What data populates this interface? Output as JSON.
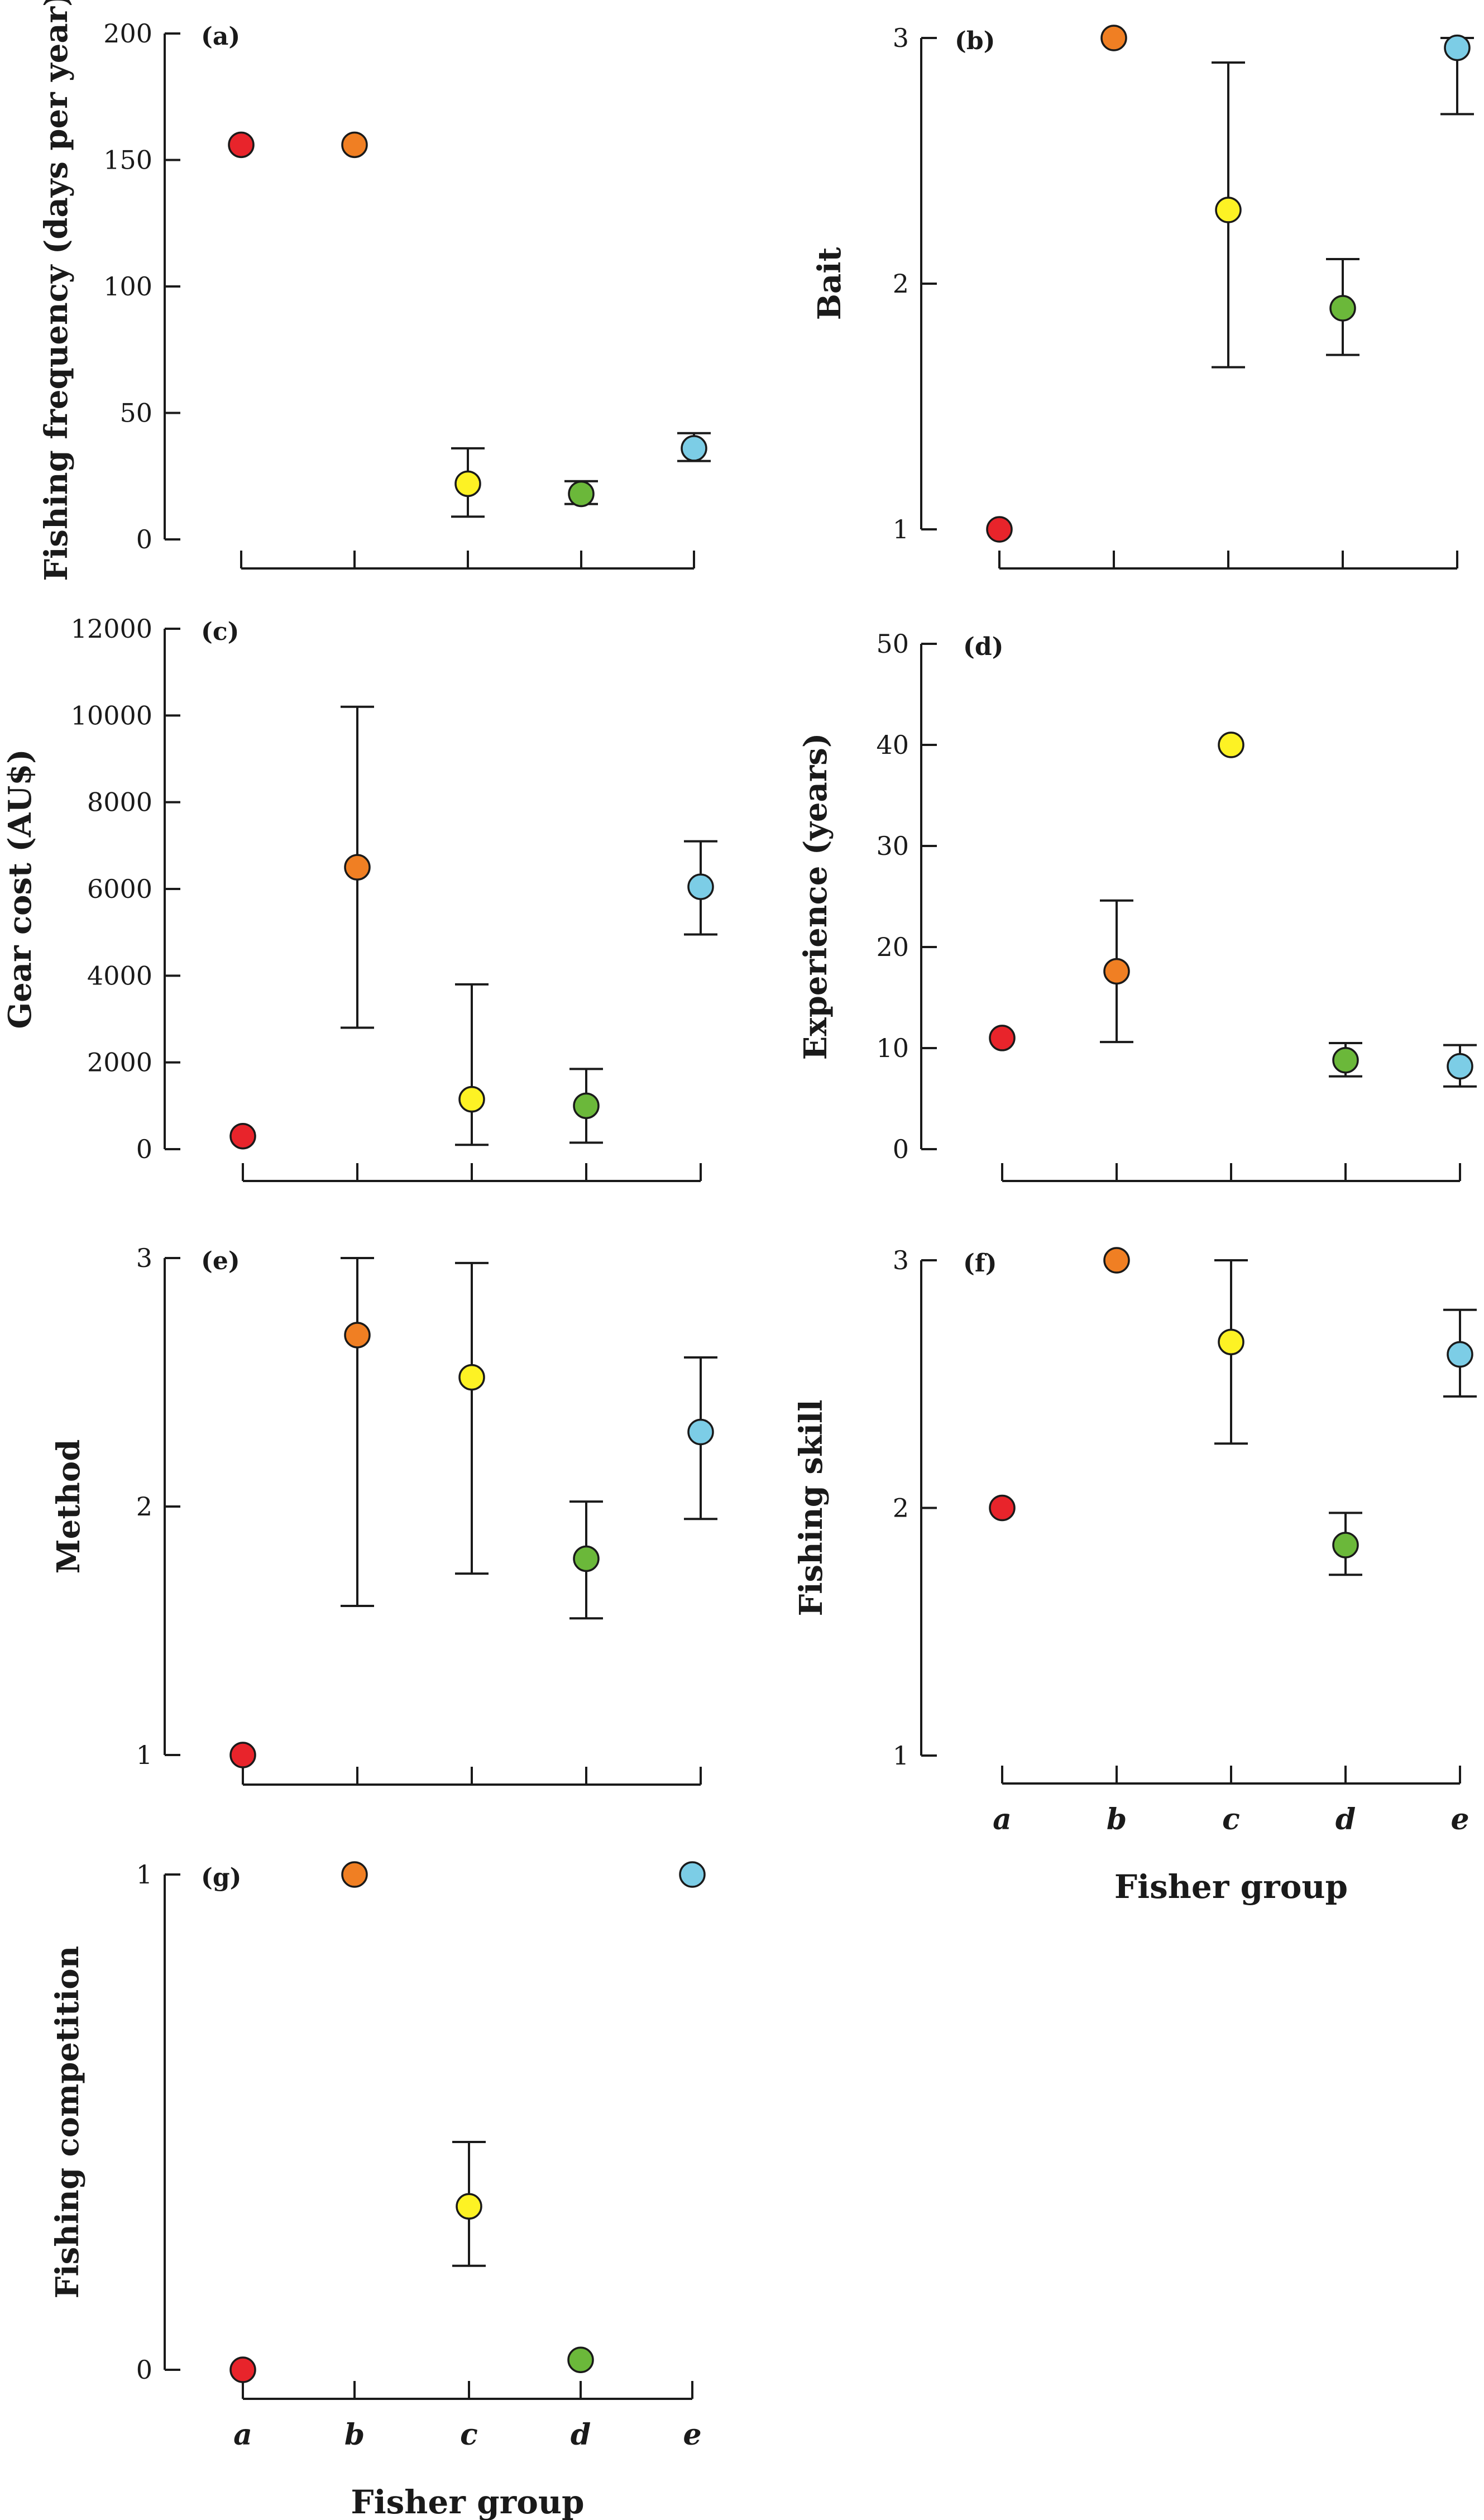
{
  "chart_data": [
    {
      "panel": "(a)",
      "type": "scatter",
      "ylabel": "Fishing frequency (days per year)",
      "xlabel": "",
      "categories": [
        "a",
        "b",
        "c",
        "d",
        "e"
      ],
      "ylim": [
        0,
        200
      ],
      "yticks": [
        0,
        50,
        100,
        150,
        200
      ],
      "values": [
        156,
        156,
        22,
        18,
        36
      ],
      "err_low": [
        156,
        156,
        9,
        14,
        31
      ],
      "err_high": [
        156,
        156,
        36,
        23,
        42
      ]
    },
    {
      "panel": "(b)",
      "type": "scatter",
      "ylabel": "Bait",
      "xlabel": "",
      "categories": [
        "a",
        "b",
        "c",
        "d",
        "e"
      ],
      "ylim": [
        1,
        3
      ],
      "yticks": [
        1,
        2,
        3
      ],
      "values": [
        1,
        3,
        2.3,
        1.9,
        2.96
      ],
      "err_low": [
        1,
        3,
        1.66,
        1.71,
        2.69
      ],
      "err_high": [
        1,
        3,
        2.9,
        2.1,
        3.0
      ]
    },
    {
      "panel": "(c)",
      "type": "scatter",
      "ylabel": "Gear cost (AU$)",
      "xlabel": "",
      "categories": [
        "a",
        "b",
        "c",
        "d",
        "e"
      ],
      "ylim": [
        0,
        12000
      ],
      "yticks": [
        0,
        2000,
        4000,
        6000,
        8000,
        10000,
        12000
      ],
      "values": [
        300,
        6500,
        1150,
        1000,
        6050
      ],
      "err_low": [
        300,
        2800,
        100,
        150,
        4950
      ],
      "err_high": [
        300,
        10200,
        3800,
        1850,
        7100
      ]
    },
    {
      "panel": "(d)",
      "type": "scatter",
      "ylabel": "Experience (years)",
      "xlabel": "",
      "categories": [
        "a",
        "b",
        "c",
        "d",
        "e"
      ],
      "ylim": [
        0,
        50
      ],
      "yticks": [
        0,
        10,
        20,
        30,
        40,
        50
      ],
      "values": [
        11,
        17.6,
        40,
        8.8,
        8.2
      ],
      "err_low": [
        11,
        10.6,
        40,
        7.2,
        6.2
      ],
      "err_high": [
        11,
        24.6,
        40,
        10.5,
        10.3
      ]
    },
    {
      "panel": "(e)",
      "type": "scatter",
      "ylabel": "Method",
      "xlabel": "",
      "categories": [
        "a",
        "b",
        "c",
        "d",
        "e"
      ],
      "ylim": [
        1,
        3
      ],
      "yticks": [
        1,
        2,
        3
      ],
      "values": [
        1,
        2.69,
        2.52,
        1.79,
        2.3
      ],
      "err_low": [
        1,
        1.6,
        1.73,
        1.55,
        1.95
      ],
      "err_high": [
        1,
        3.0,
        2.98,
        2.02,
        2.6
      ]
    },
    {
      "panel": "(f)",
      "type": "scatter",
      "ylabel": "Fishing skill",
      "xlabel": "Fisher group",
      "categories": [
        "a",
        "b",
        "c",
        "d",
        "e"
      ],
      "ylim": [
        1,
        3
      ],
      "yticks": [
        1,
        2,
        3
      ],
      "values": [
        2,
        3,
        2.67,
        1.85,
        2.62
      ],
      "err_low": [
        2,
        3,
        2.26,
        1.73,
        2.45
      ],
      "err_high": [
        2,
        3,
        3.0,
        1.98,
        2.8
      ]
    },
    {
      "panel": "(g)",
      "type": "scatter",
      "ylabel": "Fishing competition",
      "xlabel": "Fisher group",
      "categories": [
        "a",
        "b",
        "c",
        "d",
        "e"
      ],
      "ylim": [
        0,
        1
      ],
      "yticks": [
        0,
        1
      ],
      "values": [
        0,
        1,
        0.33,
        0.02,
        1
      ],
      "err_low": [
        0,
        1,
        0.21,
        0.02,
        1
      ],
      "err_high": [
        0,
        1,
        0.46,
        0.02,
        1
      ]
    }
  ],
  "colors": {
    "a": "#e8242b",
    "b": "#f07f23",
    "c": "#fdf224",
    "d": "#6bb83a",
    "e": "#7ccde6"
  }
}
